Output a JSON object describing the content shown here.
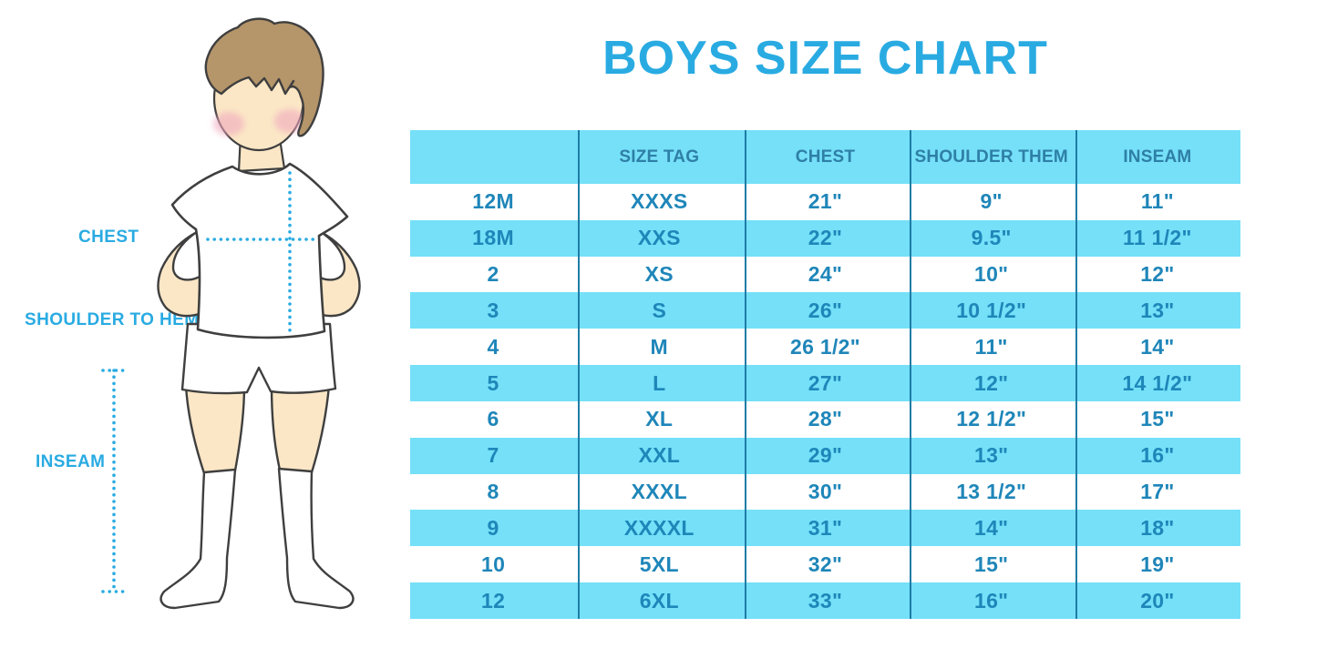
{
  "title": "BOYS SIZE CHART",
  "diagram": {
    "labels": {
      "chest": "CHEST",
      "shoulder_to_hem": "SHOULDER TO HEM",
      "inseam": "INSEAM"
    },
    "figure": "boy-cartoon-front-white-tshirt-shorts-knee-socks"
  },
  "table": {
    "headers": [
      "",
      "SIZE TAG",
      "CHEST",
      "SHOULDER THEM",
      "INSEAM"
    ],
    "rows": [
      [
        "12M",
        "XXXS",
        "21\"",
        "9\"",
        "11\""
      ],
      [
        "18M",
        "XXS",
        "22\"",
        "9.5\"",
        "11 1/2\""
      ],
      [
        "2",
        "XS",
        "24\"",
        "10\"",
        "12\""
      ],
      [
        "3",
        "S",
        "26\"",
        "10 1/2\"",
        "13\""
      ],
      [
        "4",
        "M",
        "26 1/2\"",
        "11\"",
        "14\""
      ],
      [
        "5",
        "L",
        "27\"",
        "12\"",
        "14 1/2\""
      ],
      [
        "6",
        "XL",
        "28\"",
        "12 1/2\"",
        "15\""
      ],
      [
        "7",
        "XXL",
        "29\"",
        "13\"",
        "16\""
      ],
      [
        "8",
        "XXXL",
        "30\"",
        "13 1/2\"",
        "17\""
      ],
      [
        "9",
        "XXXXL",
        "31\"",
        "14\"",
        "18\""
      ],
      [
        "10",
        "5XL",
        "32\"",
        "15\"",
        "19\""
      ],
      [
        "12",
        "6XL",
        "33\"",
        "16\"",
        "20\""
      ]
    ]
  },
  "colors": {
    "accent_blue": "#29ABE2",
    "row_light_blue": "#75E0F8",
    "cell_text_blue": "#1F86B9",
    "header_text_blue": "#2E7FA6",
    "separator_blue": "#1E7CA6",
    "skin": "#FBE7C6",
    "hair_brown": "#B5956A",
    "blush_pink": "#F0A8BE",
    "outline": "#3F3F3F"
  }
}
